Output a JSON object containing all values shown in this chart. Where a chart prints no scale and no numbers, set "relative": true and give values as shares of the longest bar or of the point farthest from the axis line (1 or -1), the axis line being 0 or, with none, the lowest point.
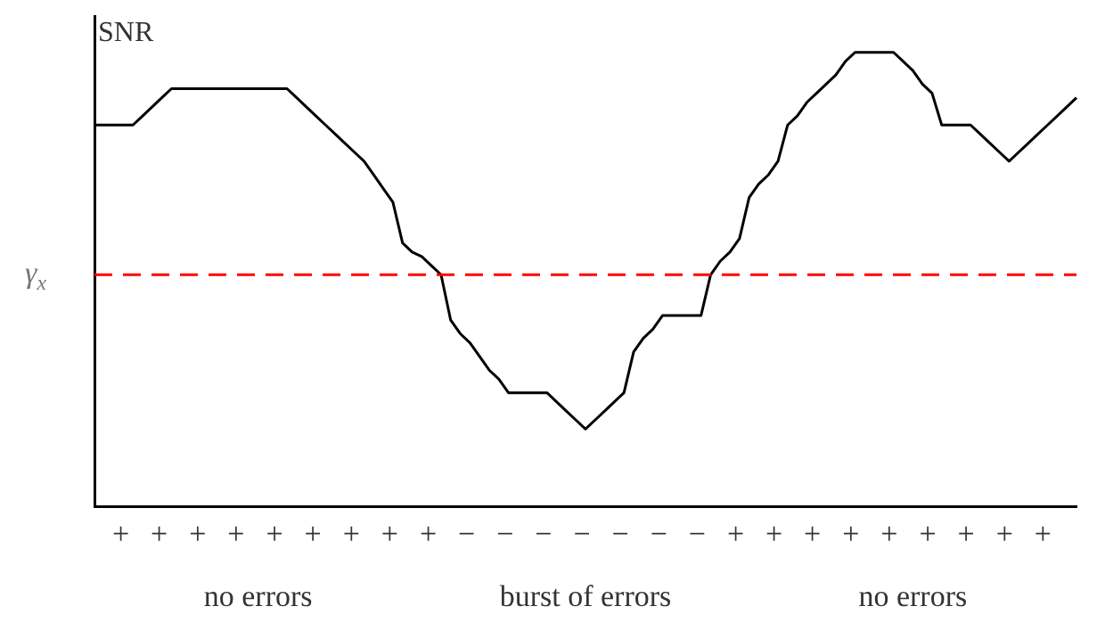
{
  "chart_data": {
    "type": "line",
    "relative": true,
    "ylabel": "SNR",
    "categories": [
      null,
      null,
      null,
      null,
      null,
      null,
      null,
      null,
      null,
      null,
      null,
      null,
      null,
      null,
      null,
      null,
      null,
      null,
      null,
      null,
      null,
      null,
      null,
      null,
      null,
      null,
      null,
      null,
      null,
      null,
      null,
      null,
      null,
      null,
      null,
      null,
      null,
      null,
      null,
      null,
      null,
      null,
      null,
      null,
      null,
      null,
      null,
      null,
      null,
      null,
      null,
      null,
      null,
      null,
      null,
      null,
      null,
      null,
      null,
      null,
      null,
      null,
      null,
      null,
      null,
      null,
      null,
      null,
      null,
      null,
      null,
      null,
      null,
      null,
      null,
      null,
      null,
      null,
      null,
      null,
      null,
      null,
      null,
      null,
      null,
      null,
      null,
      null,
      null,
      null,
      null,
      null,
      null,
      null,
      null,
      null,
      null,
      null,
      null,
      null,
      null,
      null,
      null
    ],
    "series": [
      {
        "color": "#000000",
        "values": [
          0.84,
          0.84,
          0.84,
          0.84,
          0.84,
          0.86,
          0.88,
          0.9,
          0.92,
          0.92,
          0.92,
          0.92,
          0.92,
          0.92,
          0.92,
          0.92,
          0.92,
          0.92,
          0.92,
          0.92,
          0.92,
          0.9,
          0.88,
          0.86,
          0.84,
          0.82,
          0.8,
          0.78,
          0.76,
          0.73,
          0.7,
          0.67,
          0.58,
          0.56,
          0.55,
          0.53,
          0.51,
          0.41,
          0.38,
          0.36,
          0.33,
          0.3,
          0.28,
          0.25,
          0.25,
          0.25,
          0.25,
          0.25,
          0.23,
          0.21,
          0.19,
          0.17,
          0.19,
          0.21,
          0.23,
          0.25,
          0.34,
          0.37,
          0.39,
          0.42,
          0.42,
          0.42,
          0.42,
          0.42,
          0.51,
          0.54,
          0.56,
          0.59,
          0.68,
          0.71,
          0.73,
          0.76,
          0.84,
          0.86,
          0.89,
          0.91,
          0.93,
          0.95,
          0.98,
          1,
          1,
          1,
          1,
          1,
          0.98,
          0.96,
          0.93,
          0.91,
          0.84,
          0.84,
          0.84,
          0.84,
          0.82,
          0.8,
          0.78,
          0.76,
          0.78,
          0.8,
          0.82,
          0.84,
          0.86,
          0.88,
          0.9
        ]
      }
    ],
    "ref_lines": [
      {
        "axis": "y",
        "value": 0.51,
        "label": "γ$_{x}$",
        "color": "#ff0000",
        "line_style": "dashed"
      }
    ],
    "annotations": [
      "+ + + + + + + + + − − − − − − − + + + + + + + + +",
      "no errors",
      "burst of errors",
      "no errors"
    ],
    "grid": false,
    "legend": false,
    "marker": "none",
    "line_style": "solid"
  }
}
